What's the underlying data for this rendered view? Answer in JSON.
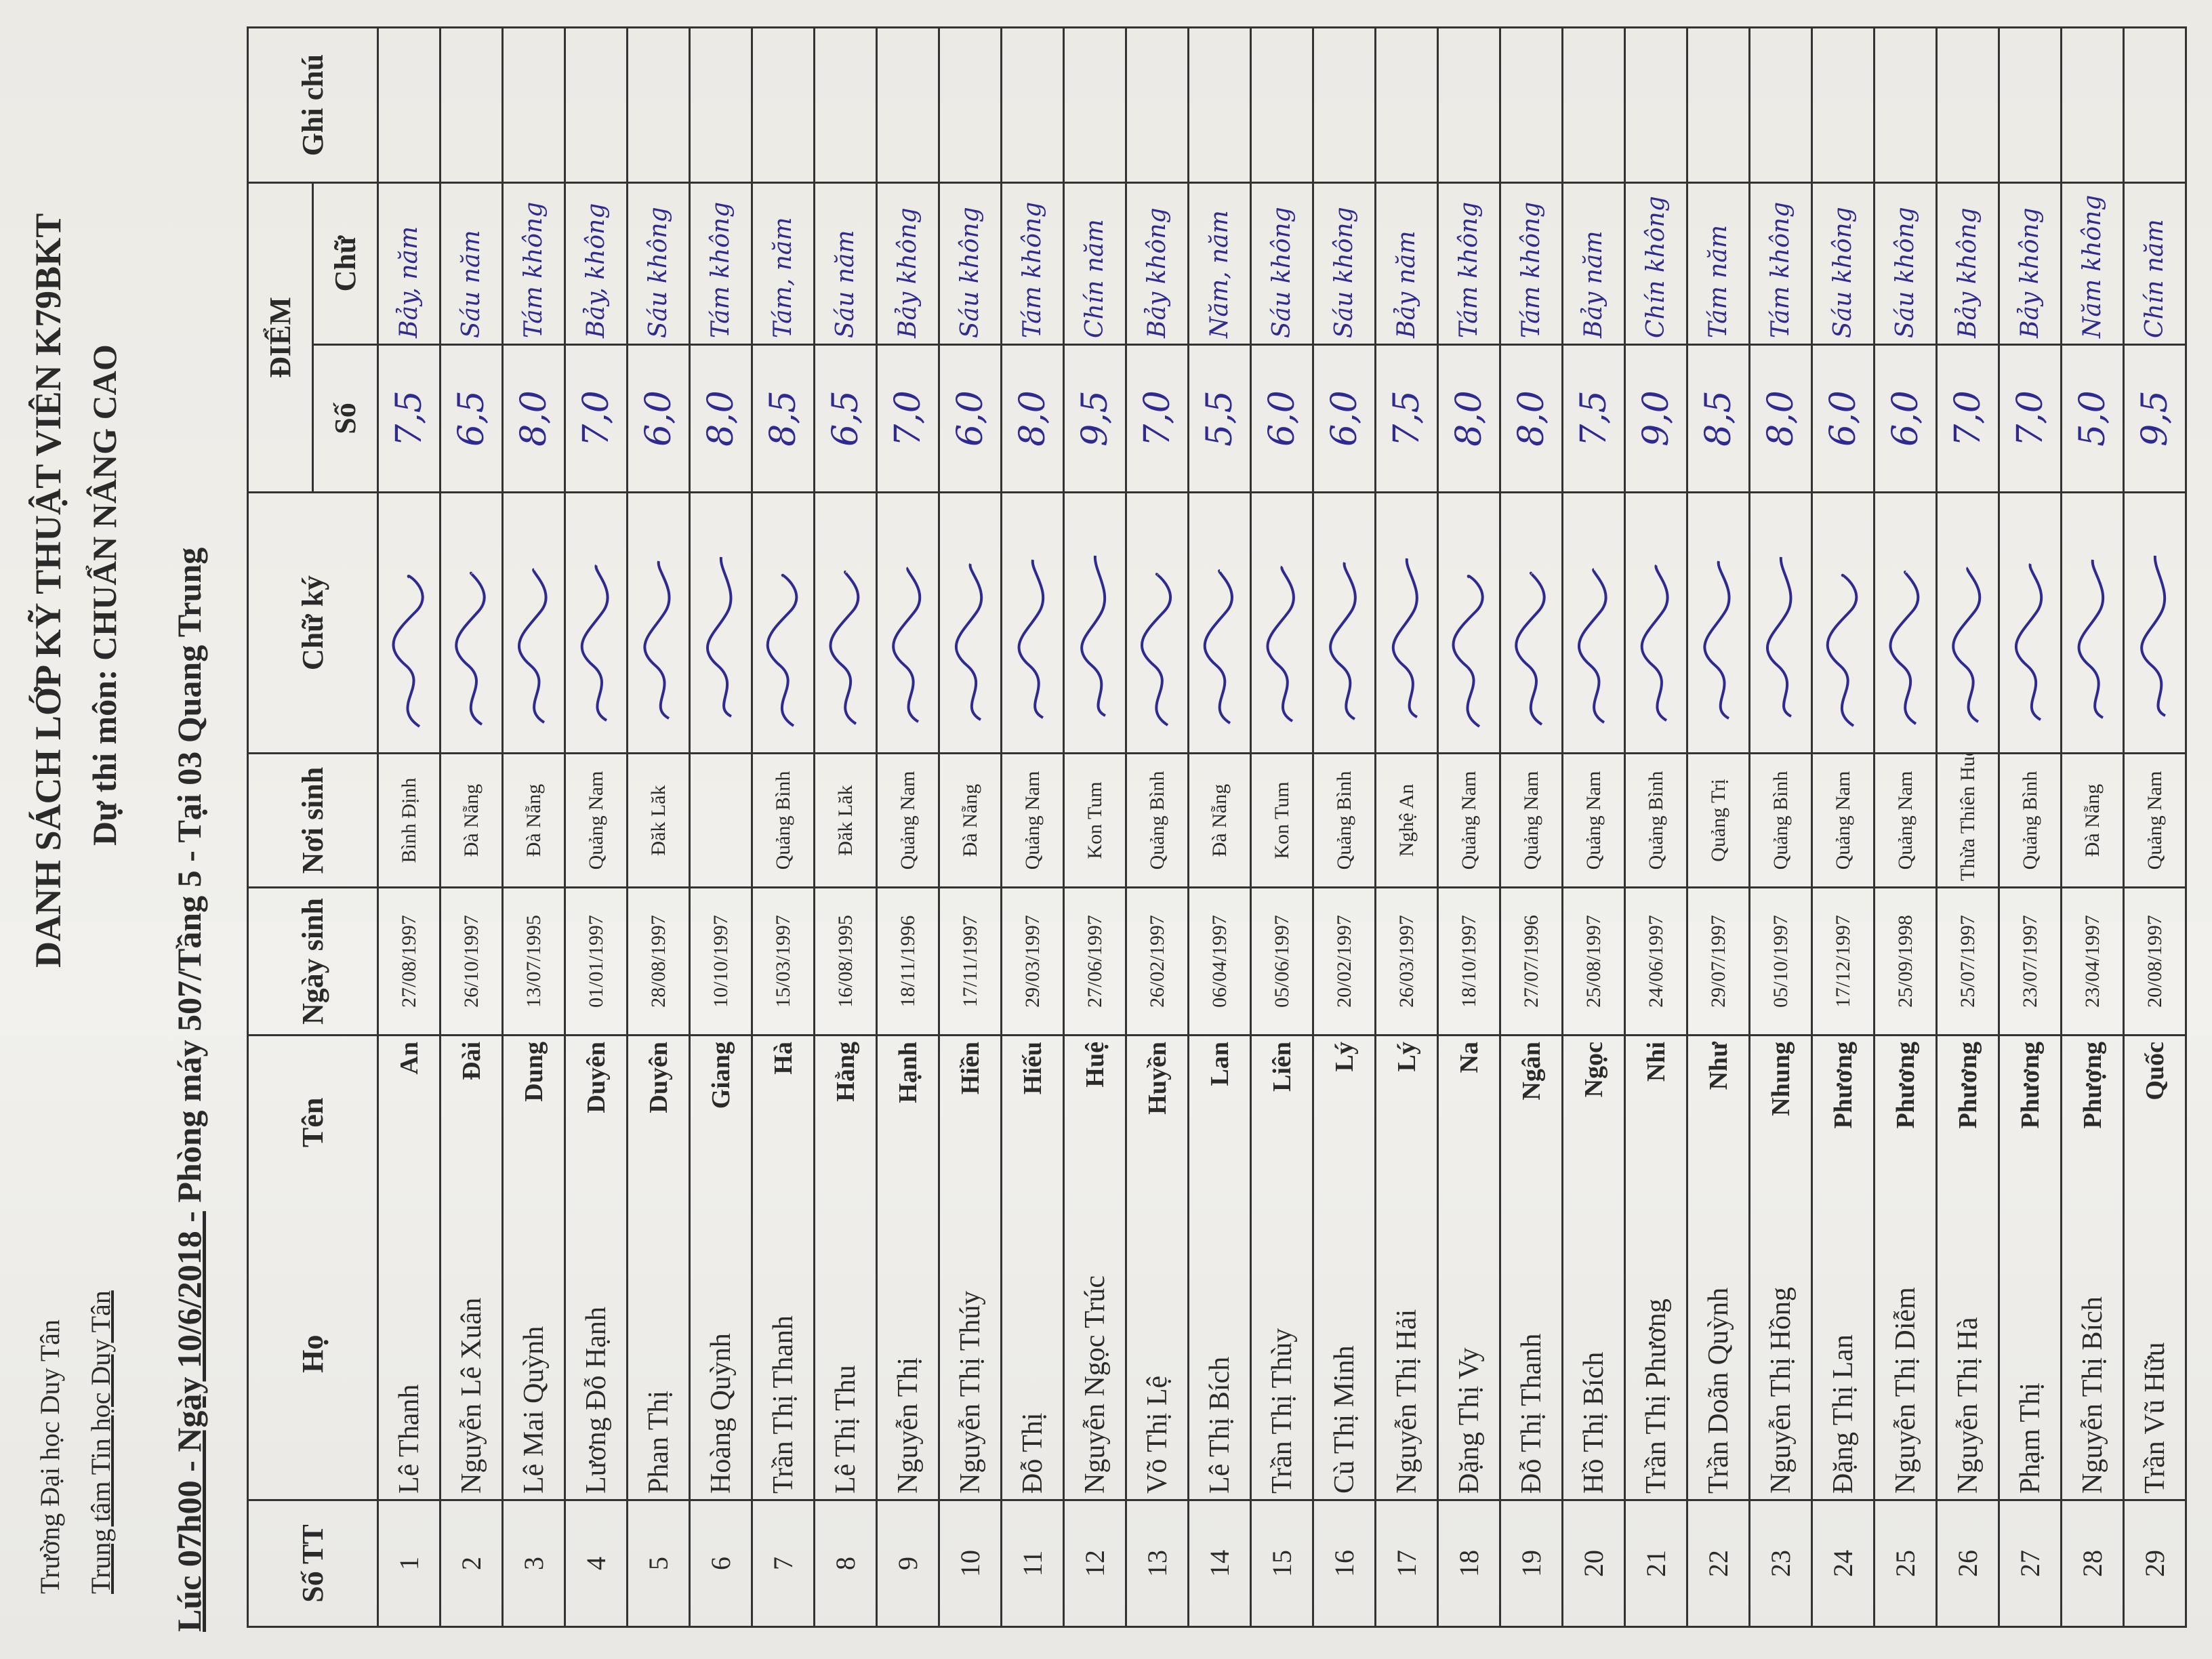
{
  "header": {
    "school": "Trường Đại học Duy Tân",
    "center": "Trung tâm Tin học Duy Tân",
    "title": "DANH SÁCH LỚP KỸ THUẬT VIÊN K79BKT",
    "subject": "Dự thi môn: CHUẨN NÂNG CAO",
    "session_lead": "Lúc 07h00 - Ngày 10/6/2018 -",
    "session_rest": " Phòng máy 507/Tầng 5 - Tại 03 Quang Trung"
  },
  "table": {
    "headers": {
      "stt": "Số TT",
      "ho": "Họ",
      "ten": "Tên",
      "ngay_sinh": "Ngày sinh",
      "noi_sinh": "Nơi sinh",
      "chu_ky": "Chữ ký",
      "diem": "ĐIỂM",
      "diem_so": "Số",
      "diem_chu": "Chữ",
      "ghi_chu": "Ghi chú"
    },
    "rows": [
      {
        "stt": "1",
        "ho": "Lê Thanh",
        "ten": "An",
        "ngay_sinh": "27/08/1997",
        "noi_sinh": "Bình Định",
        "diem_so": "7,5",
        "diem_chu": "Bảy, năm"
      },
      {
        "stt": "2",
        "ho": "Nguyễn Lê Xuân",
        "ten": "Đài",
        "ngay_sinh": "26/10/1997",
        "noi_sinh": "Đà Nẵng",
        "diem_so": "6,5",
        "diem_chu": "Sáu năm"
      },
      {
        "stt": "3",
        "ho": "Lê Mai Quỳnh",
        "ten": "Dung",
        "ngay_sinh": "13/07/1995",
        "noi_sinh": "Đà Nẵng",
        "diem_so": "8,0",
        "diem_chu": "Tám không"
      },
      {
        "stt": "4",
        "ho": "Lương Đỗ Hạnh",
        "ten": "Duyên",
        "ngay_sinh": "01/01/1997",
        "noi_sinh": "Quảng Nam",
        "diem_so": "7,0",
        "diem_chu": "Bảy, không"
      },
      {
        "stt": "5",
        "ho": "Phan Thị",
        "ten": "Duyên",
        "ngay_sinh": "28/08/1997",
        "noi_sinh": "Đăk Lăk",
        "diem_so": "6,0",
        "diem_chu": "Sáu không"
      },
      {
        "stt": "6",
        "ho": "Hoàng Quỳnh",
        "ten": "Giang",
        "ngay_sinh": "10/10/1997",
        "noi_sinh": "",
        "diem_so": "8,0",
        "diem_chu": "Tám không"
      },
      {
        "stt": "7",
        "ho": "Trần Thị Thanh",
        "ten": "Hà",
        "ngay_sinh": "15/03/1997",
        "noi_sinh": "Quảng Bình",
        "diem_so": "8,5",
        "diem_chu": "Tám, năm"
      },
      {
        "stt": "8",
        "ho": "Lê Thị Thu",
        "ten": "Hằng",
        "ngay_sinh": "16/08/1995",
        "noi_sinh": "Đăk Lăk",
        "diem_so": "6,5",
        "diem_chu": "Sáu năm"
      },
      {
        "stt": "9",
        "ho": "Nguyễn Thị",
        "ten": "Hạnh",
        "ngay_sinh": "18/11/1996",
        "noi_sinh": "Quảng Nam",
        "diem_so": "7,0",
        "diem_chu": "Bảy không"
      },
      {
        "stt": "10",
        "ho": "Nguyễn Thị Thúy",
        "ten": "Hiền",
        "ngay_sinh": "17/11/1997",
        "noi_sinh": "Đà Nẵng",
        "diem_so": "6,0",
        "diem_chu": "Sáu không"
      },
      {
        "stt": "11",
        "ho": "Đỗ Thị",
        "ten": "Hiếu",
        "ngay_sinh": "29/03/1997",
        "noi_sinh": "Quảng Nam",
        "diem_so": "8,0",
        "diem_chu": "Tám không"
      },
      {
        "stt": "12",
        "ho": "Nguyễn Ngọc Trúc",
        "ten": "Huệ",
        "ngay_sinh": "27/06/1997",
        "noi_sinh": "Kon Tum",
        "diem_so": "9,5",
        "diem_chu": "Chín năm"
      },
      {
        "stt": "13",
        "ho": "Võ Thị Lệ",
        "ten": "Huyền",
        "ngay_sinh": "26/02/1997",
        "noi_sinh": "Quảng Bình",
        "diem_so": "7,0",
        "diem_chu": "Bảy không"
      },
      {
        "stt": "14",
        "ho": "Lê Thị Bích",
        "ten": "Lan",
        "ngay_sinh": "06/04/1997",
        "noi_sinh": "Đà Nẵng",
        "diem_so": "5,5",
        "diem_chu": "Năm, năm"
      },
      {
        "stt": "15",
        "ho": "Trần Thị Thùy",
        "ten": "Liên",
        "ngay_sinh": "05/06/1997",
        "noi_sinh": "Kon Tum",
        "diem_so": "6,0",
        "diem_chu": "Sáu không"
      },
      {
        "stt": "16",
        "ho": "Cù Thị Minh",
        "ten": "Lý",
        "ngay_sinh": "20/02/1997",
        "noi_sinh": "Quảng Bình",
        "diem_so": "6,0",
        "diem_chu": "Sáu không"
      },
      {
        "stt": "17",
        "ho": "Nguyễn Thị Hải",
        "ten": "Lý",
        "ngay_sinh": "26/03/1997",
        "noi_sinh": "Nghệ An",
        "diem_so": "7,5",
        "diem_chu": "Bảy năm"
      },
      {
        "stt": "18",
        "ho": "Đặng Thị Vy",
        "ten": "Na",
        "ngay_sinh": "18/10/1997",
        "noi_sinh": "Quảng Nam",
        "diem_so": "8,0",
        "diem_chu": "Tám không"
      },
      {
        "stt": "19",
        "ho": "Đỗ Thị Thanh",
        "ten": "Ngân",
        "ngay_sinh": "27/07/1996",
        "noi_sinh": "Quảng Nam",
        "diem_so": "8,0",
        "diem_chu": "Tám không"
      },
      {
        "stt": "20",
        "ho": "Hồ Thị Bích",
        "ten": "Ngọc",
        "ngay_sinh": "25/08/1997",
        "noi_sinh": "Quảng Nam",
        "diem_so": "7,5",
        "diem_chu": "Bảy năm"
      },
      {
        "stt": "21",
        "ho": "Trần Thị Phương",
        "ten": "Nhi",
        "ngay_sinh": "24/06/1997",
        "noi_sinh": "Quảng Bình",
        "diem_so": "9,0",
        "diem_chu": "Chín không"
      },
      {
        "stt": "22",
        "ho": "Trần Doãn Quỳnh",
        "ten": "Như",
        "ngay_sinh": "29/07/1997",
        "noi_sinh": "Quảng Trị",
        "diem_so": "8,5",
        "diem_chu": "Tám năm"
      },
      {
        "stt": "23",
        "ho": "Nguyễn Thị Hồng",
        "ten": "Nhung",
        "ngay_sinh": "05/10/1997",
        "noi_sinh": "Quảng Bình",
        "diem_so": "8,0",
        "diem_chu": "Tám không"
      },
      {
        "stt": "24",
        "ho": "Đặng Thị Lan",
        "ten": "Phương",
        "ngay_sinh": "17/12/1997",
        "noi_sinh": "Quảng Nam",
        "diem_so": "6,0",
        "diem_chu": "Sáu không"
      },
      {
        "stt": "25",
        "ho": "Nguyễn Thị Diễm",
        "ten": "Phương",
        "ngay_sinh": "25/09/1998",
        "noi_sinh": "Quảng Nam",
        "diem_so": "6,0",
        "diem_chu": "Sáu không"
      },
      {
        "stt": "26",
        "ho": "Nguyễn Thị Hà",
        "ten": "Phương",
        "ngay_sinh": "25/07/1997",
        "noi_sinh": "Thừa Thiên Huế",
        "diem_so": "7,0",
        "diem_chu": "Bảy không"
      },
      {
        "stt": "27",
        "ho": "Phạm Thị",
        "ten": "Phương",
        "ngay_sinh": "23/07/1997",
        "noi_sinh": "Quảng Bình",
        "diem_so": "7,0",
        "diem_chu": "Bảy không"
      },
      {
        "stt": "28",
        "ho": "Nguyễn Thị Bích",
        "ten": "Phượng",
        "ngay_sinh": "23/04/1997",
        "noi_sinh": "Đà Nẵng",
        "diem_so": "5,0",
        "diem_chu": "Năm không"
      },
      {
        "stt": "29",
        "ho": "Trần Vũ Hữu",
        "ten": "Quốc",
        "ngay_sinh": "20/08/1997",
        "noi_sinh": "Quảng Nam",
        "diem_so": "9,5",
        "diem_chu": "Chín năm"
      }
    ]
  },
  "colors": {
    "ink": "#2f2a8f",
    "print": "#2a2a2a",
    "paper": "#eceae5"
  }
}
